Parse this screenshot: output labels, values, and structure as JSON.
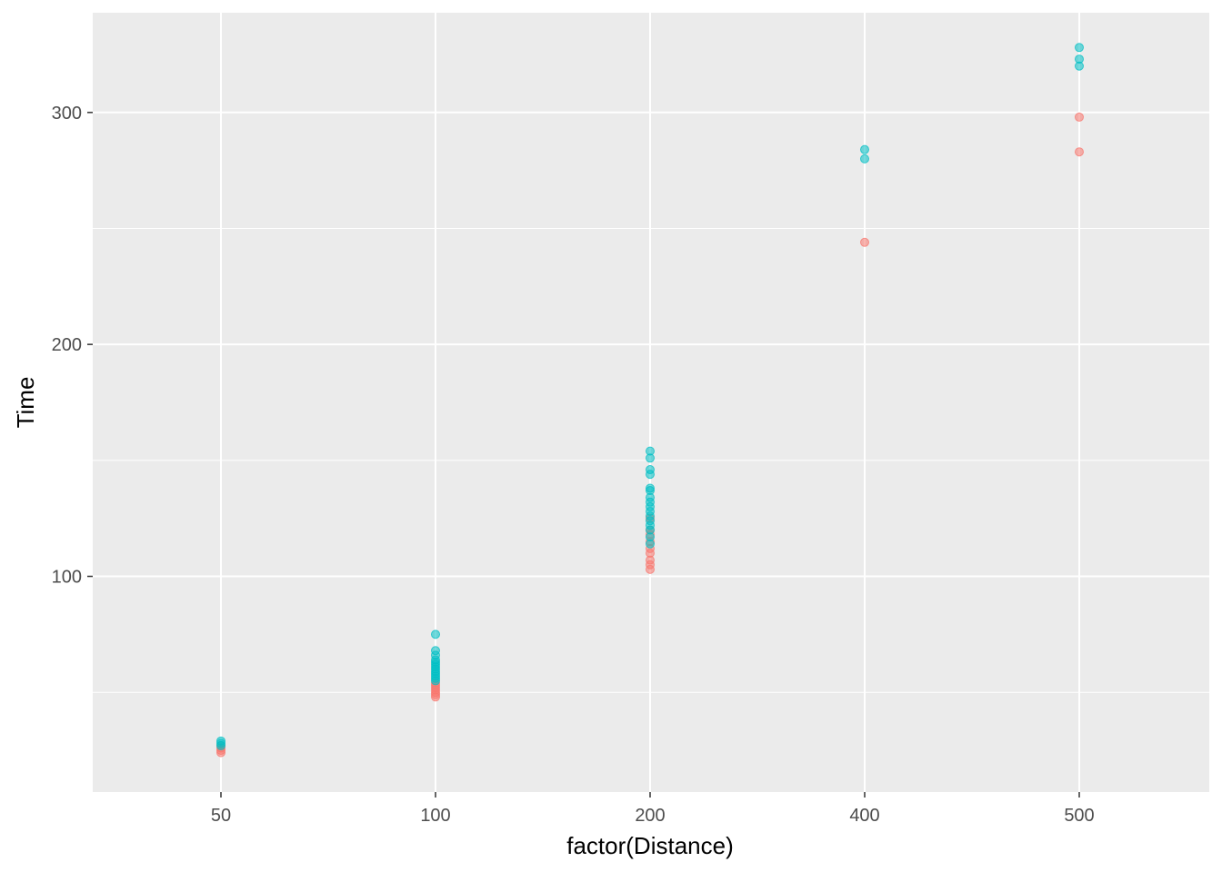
{
  "chart_data": {
    "type": "scatter",
    "title": "",
    "xlabel": "factor(Distance)",
    "ylabel": "Time",
    "x_categories": [
      "50",
      "100",
      "200",
      "400",
      "500"
    ],
    "y_ticks": [
      100,
      200,
      300
    ],
    "ylim": [
      7,
      343
    ],
    "grid": true,
    "legend": "none",
    "colors": {
      "panel": "#EBEBEB",
      "grid": "#FFFFFF",
      "series_a": "#F8766D",
      "series_b": "#00BFC4"
    },
    "series": [
      {
        "color": "#F8766D",
        "points": [
          {
            "x": "50",
            "y": 24
          },
          {
            "x": "50",
            "y": 25
          },
          {
            "x": "50",
            "y": 26
          },
          {
            "x": "50",
            "y": 27
          },
          {
            "x": "100",
            "y": 48
          },
          {
            "x": "100",
            "y": 49
          },
          {
            "x": "100",
            "y": 50
          },
          {
            "x": "100",
            "y": 51
          },
          {
            "x": "100",
            "y": 52
          },
          {
            "x": "100",
            "y": 53
          },
          {
            "x": "100",
            "y": 54
          },
          {
            "x": "200",
            "y": 103
          },
          {
            "x": "200",
            "y": 105
          },
          {
            "x": "200",
            "y": 107
          },
          {
            "x": "200",
            "y": 110
          },
          {
            "x": "200",
            "y": 112
          },
          {
            "x": "200",
            "y": 115
          },
          {
            "x": "200",
            "y": 118
          },
          {
            "x": "200",
            "y": 120
          },
          {
            "x": "200",
            "y": 125
          },
          {
            "x": "400",
            "y": 244
          },
          {
            "x": "500",
            "y": 283
          },
          {
            "x": "500",
            "y": 298
          }
        ]
      },
      {
        "color": "#00BFC4",
        "points": [
          {
            "x": "50",
            "y": 27
          },
          {
            "x": "50",
            "y": 28
          },
          {
            "x": "50",
            "y": 29
          },
          {
            "x": "100",
            "y": 55
          },
          {
            "x": "100",
            "y": 56
          },
          {
            "x": "100",
            "y": 57
          },
          {
            "x": "100",
            "y": 58
          },
          {
            "x": "100",
            "y": 59
          },
          {
            "x": "100",
            "y": 60
          },
          {
            "x": "100",
            "y": 61
          },
          {
            "x": "100",
            "y": 62
          },
          {
            "x": "100",
            "y": 63
          },
          {
            "x": "100",
            "y": 64
          },
          {
            "x": "100",
            "y": 66
          },
          {
            "x": "100",
            "y": 68
          },
          {
            "x": "100",
            "y": 75
          },
          {
            "x": "200",
            "y": 114
          },
          {
            "x": "200",
            "y": 117
          },
          {
            "x": "200",
            "y": 120
          },
          {
            "x": "200",
            "y": 122
          },
          {
            "x": "200",
            "y": 124
          },
          {
            "x": "200",
            "y": 126
          },
          {
            "x": "200",
            "y": 128
          },
          {
            "x": "200",
            "y": 130
          },
          {
            "x": "200",
            "y": 132
          },
          {
            "x": "200",
            "y": 134
          },
          {
            "x": "200",
            "y": 137
          },
          {
            "x": "200",
            "y": 138
          },
          {
            "x": "200",
            "y": 144
          },
          {
            "x": "200",
            "y": 146
          },
          {
            "x": "200",
            "y": 151
          },
          {
            "x": "200",
            "y": 154
          },
          {
            "x": "400",
            "y": 280
          },
          {
            "x": "400",
            "y": 284
          },
          {
            "x": "500",
            "y": 320
          },
          {
            "x": "500",
            "y": 323
          },
          {
            "x": "500",
            "y": 328
          }
        ]
      }
    ]
  }
}
